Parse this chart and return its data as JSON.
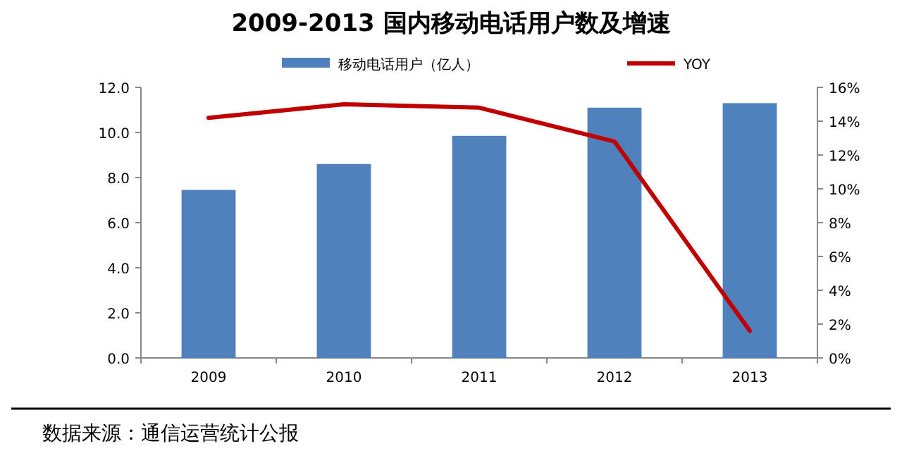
{
  "chart_data": {
    "type": "bar",
    "title": "2009-2013 国内移动电话用户数及增速",
    "categories": [
      "2009",
      "2010",
      "2011",
      "2012",
      "2013"
    ],
    "series": [
      {
        "name": "移动电话用户（亿人）",
        "color": "#4f81bd",
        "values": [
          7.45,
          8.6,
          9.85,
          11.1,
          11.3
        ]
      },
      {
        "name": "YOY",
        "type": "line",
        "axis": "y2",
        "color": "#c00000",
        "values": [
          14.2,
          15.0,
          14.8,
          12.8,
          1.6
        ]
      }
    ],
    "ylim": [
      0,
      12
    ],
    "yticks": [
      {
        "value": 0,
        "label": "0.0"
      },
      {
        "value": 2,
        "label": "2.0"
      },
      {
        "value": 4,
        "label": "4.0"
      },
      {
        "value": 6,
        "label": "6.0"
      },
      {
        "value": 8,
        "label": "8.0"
      },
      {
        "value": 10,
        "label": "10.0"
      },
      {
        "value": 12,
        "label": "12.0"
      }
    ],
    "y2lim": [
      0,
      16
    ],
    "y2ticks": [
      {
        "value": 0,
        "label": "0%"
      },
      {
        "value": 2,
        "label": "2%"
      },
      {
        "value": 4,
        "label": "4%"
      },
      {
        "value": 6,
        "label": "6%"
      },
      {
        "value": 8,
        "label": "8%"
      },
      {
        "value": 10,
        "label": "10%"
      },
      {
        "value": 12,
        "label": "12%"
      },
      {
        "value": 14,
        "label": "14%"
      },
      {
        "value": 16,
        "label": "16%"
      }
    ],
    "legend": "top",
    "grid": false,
    "marker": "none",
    "annotations": [
      "数据来源：通信运营统计公报"
    ]
  }
}
